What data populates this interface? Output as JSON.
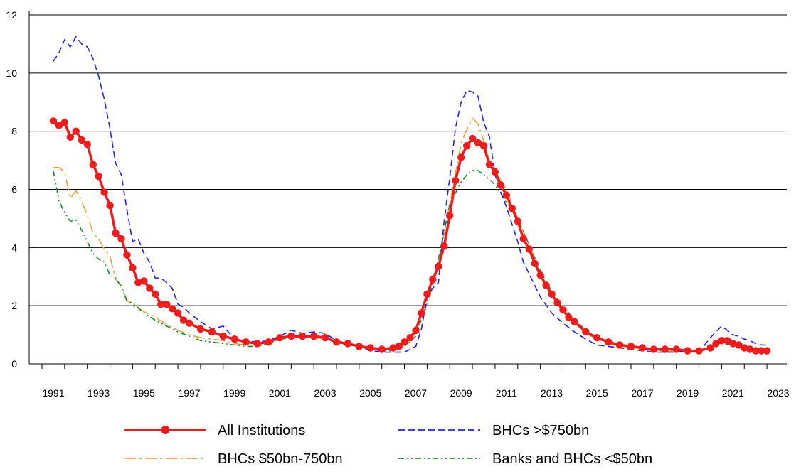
{
  "chart_data": {
    "type": "line",
    "title": "",
    "xlabel": "",
    "ylabel": "",
    "xlim": [
      1990.5,
      2023
    ],
    "ylim": [
      0,
      12
    ],
    "grid": "horizontal",
    "legend_placement": "bottom",
    "y_ticks": [
      "0",
      "2",
      "4",
      "6",
      "8",
      "10",
      "12"
    ],
    "x_ticks": [
      "1991",
      "1993",
      "1995",
      "1997",
      "1999",
      "2001",
      "2003",
      "2005",
      "2007",
      "2009",
      "2011",
      "2013",
      "2015",
      "2017",
      "2019",
      "2021",
      "2023"
    ],
    "series": [
      {
        "name": "All Institutions",
        "color": "#ee1c1c",
        "style": "solid-markers",
        "x": [
          1991.0,
          1991.25,
          1991.5,
          1991.75,
          1992.0,
          1992.25,
          1992.5,
          1992.75,
          1993.0,
          1993.25,
          1993.5,
          1993.75,
          1994.0,
          1994.25,
          1994.5,
          1994.75,
          1995.0,
          1995.25,
          1995.5,
          1995.75,
          1996.0,
          1996.25,
          1996.5,
          1996.75,
          1997.0,
          1997.5,
          1998.0,
          1998.5,
          1999.0,
          1999.5,
          2000.0,
          2000.5,
          2001.0,
          2001.5,
          2002.0,
          2002.5,
          2003.0,
          2003.5,
          2004.0,
          2004.5,
          2005.0,
          2005.5,
          2006.0,
          2006.25,
          2006.5,
          2006.75,
          2007.0,
          2007.25,
          2007.5,
          2007.75,
          2008.0,
          2008.25,
          2008.5,
          2008.75,
          2009.0,
          2009.25,
          2009.5,
          2009.75,
          2010.0,
          2010.25,
          2010.5,
          2010.75,
          2011.0,
          2011.25,
          2011.5,
          2011.75,
          2012.0,
          2012.25,
          2012.5,
          2012.75,
          2013.0,
          2013.25,
          2013.5,
          2013.75,
          2014.0,
          2014.5,
          2015.0,
          2015.5,
          2016.0,
          2016.5,
          2017.0,
          2017.5,
          2018.0,
          2018.5,
          2019.0,
          2019.5,
          2020.0,
          2020.25,
          2020.5,
          2020.75,
          2021.0,
          2021.25,
          2021.5,
          2021.75,
          2022.0,
          2022.25,
          2022.5
        ],
        "values": [
          8.35,
          8.2,
          8.3,
          7.8,
          8.0,
          7.7,
          7.55,
          6.85,
          6.45,
          5.9,
          5.45,
          4.5,
          4.3,
          3.75,
          3.3,
          2.8,
          2.85,
          2.6,
          2.4,
          2.05,
          2.05,
          1.9,
          1.75,
          1.5,
          1.4,
          1.2,
          1.1,
          0.95,
          0.85,
          0.75,
          0.7,
          0.75,
          0.9,
          0.95,
          0.95,
          0.95,
          0.9,
          0.75,
          0.7,
          0.6,
          0.55,
          0.5,
          0.55,
          0.6,
          0.75,
          0.9,
          1.15,
          1.75,
          2.4,
          2.9,
          3.35,
          4.05,
          5.1,
          6.3,
          7.1,
          7.5,
          7.75,
          7.6,
          7.5,
          6.85,
          6.6,
          6.15,
          5.8,
          5.35,
          4.9,
          4.3,
          3.95,
          3.45,
          3.05,
          2.7,
          2.4,
          2.1,
          1.85,
          1.6,
          1.45,
          1.1,
          0.9,
          0.75,
          0.65,
          0.6,
          0.55,
          0.5,
          0.5,
          0.5,
          0.45,
          0.45,
          0.55,
          0.7,
          0.8,
          0.8,
          0.7,
          0.65,
          0.55,
          0.5,
          0.45,
          0.45,
          0.45
        ]
      },
      {
        "name": "BHCs >$750bn",
        "color": "#2424e6",
        "style": "dashed",
        "x": [
          1991.0,
          1991.25,
          1991.5,
          1991.75,
          1992.0,
          1992.25,
          1992.5,
          1992.75,
          1993.0,
          1993.25,
          1993.5,
          1993.75,
          1994.0,
          1994.25,
          1994.5,
          1994.75,
          1995.0,
          1995.25,
          1995.5,
          1995.75,
          1996.0,
          1996.25,
          1996.5,
          1996.75,
          1997.0,
          1997.5,
          1998.0,
          1998.5,
          1999.0,
          1999.5,
          2000.0,
          2000.5,
          2001.0,
          2001.5,
          2002.0,
          2002.5,
          2003.0,
          2003.5,
          2004.0,
          2004.5,
          2005.0,
          2005.5,
          2006.0,
          2006.5,
          2007.0,
          2007.25,
          2007.5,
          2007.75,
          2008.0,
          2008.25,
          2008.5,
          2008.75,
          2009.0,
          2009.25,
          2009.5,
          2009.75,
          2010.0,
          2010.25,
          2010.5,
          2010.75,
          2011.0,
          2011.25,
          2011.5,
          2011.75,
          2012.0,
          2012.5,
          2013.0,
          2013.5,
          2014.0,
          2014.5,
          2015.0,
          2015.5,
          2016.0,
          2016.5,
          2017.0,
          2017.5,
          2018.0,
          2018.5,
          2019.0,
          2019.5,
          2020.0,
          2020.25,
          2020.5,
          2020.75,
          2021.0,
          2021.25,
          2021.5,
          2021.75,
          2022.0,
          2022.25,
          2022.5
        ],
        "values": [
          10.4,
          10.7,
          11.15,
          10.9,
          11.25,
          11.0,
          10.9,
          10.5,
          9.9,
          9.1,
          8.1,
          6.9,
          6.5,
          5.3,
          4.2,
          4.3,
          3.8,
          3.5,
          2.95,
          2.95,
          2.8,
          2.6,
          2.05,
          1.95,
          1.75,
          1.45,
          1.2,
          1.3,
          0.85,
          0.8,
          0.75,
          0.8,
          0.95,
          1.15,
          1.05,
          1.1,
          1.05,
          0.8,
          0.7,
          0.6,
          0.45,
          0.4,
          0.4,
          0.4,
          0.6,
          1.2,
          2.3,
          2.6,
          2.8,
          4.9,
          6.4,
          8.1,
          9.0,
          9.4,
          9.35,
          9.2,
          8.3,
          7.8,
          6.5,
          5.9,
          5.4,
          4.8,
          4.2,
          3.5,
          3.1,
          2.3,
          1.75,
          1.4,
          1.1,
          0.85,
          0.65,
          0.6,
          0.55,
          0.5,
          0.45,
          0.4,
          0.4,
          0.4,
          0.45,
          0.4,
          0.9,
          1.1,
          1.3,
          1.15,
          1.0,
          0.95,
          0.85,
          0.8,
          0.7,
          0.65,
          0.65
        ]
      },
      {
        "name": "BHCs $50bn-750bn",
        "color": "#f0a040",
        "style": "dash-dot",
        "x": [
          1991.0,
          1991.25,
          1991.5,
          1991.75,
          1992.0,
          1992.25,
          1992.5,
          1992.75,
          1993.0,
          1993.25,
          1993.5,
          1993.75,
          1994.0,
          1994.25,
          1994.5,
          1995.0,
          1995.5,
          1996.0,
          1996.5,
          1997.0,
          1997.5,
          1998.0,
          1998.5,
          1999.0,
          1999.5,
          2000.0,
          2000.5,
          2001.0,
          2001.5,
          2002.0,
          2002.5,
          2003.0,
          2003.5,
          2004.0,
          2004.5,
          2005.0,
          2005.5,
          2006.0,
          2006.5,
          2007.0,
          2007.5,
          2008.0,
          2008.5,
          2009.0,
          2009.25,
          2009.5,
          2009.75,
          2010.0,
          2010.25,
          2010.5,
          2010.75,
          2011.0,
          2011.5,
          2012.0,
          2012.5,
          2013.0,
          2013.5,
          2014.0,
          2014.5,
          2015.0,
          2015.5,
          2016.0,
          2016.5,
          2017.0,
          2017.5,
          2018.0,
          2018.5,
          2019.0,
          2019.5,
          2020.0,
          2020.5,
          2021.0,
          2021.5,
          2022.0,
          2022.5
        ],
        "values": [
          6.75,
          6.75,
          6.6,
          5.7,
          5.95,
          5.6,
          5.1,
          4.5,
          4.3,
          3.95,
          3.7,
          2.9,
          2.7,
          2.2,
          2.0,
          1.8,
          1.6,
          1.35,
          1.15,
          1.0,
          0.9,
          0.85,
          0.8,
          0.7,
          0.65,
          0.65,
          0.75,
          0.85,
          0.9,
          0.9,
          0.9,
          0.85,
          0.75,
          0.7,
          0.6,
          0.5,
          0.5,
          0.5,
          0.65,
          1.05,
          2.0,
          3.4,
          5.5,
          7.6,
          8.05,
          8.45,
          8.25,
          7.65,
          7.0,
          6.7,
          6.3,
          6.0,
          5.0,
          4.1,
          3.1,
          2.35,
          1.8,
          1.45,
          1.05,
          0.85,
          0.7,
          0.6,
          0.55,
          0.5,
          0.45,
          0.45,
          0.4,
          0.4,
          0.4,
          0.55,
          0.75,
          0.7,
          0.55,
          0.45,
          0.4
        ]
      },
      {
        "name": "Banks and BHCs <$50bn",
        "color": "#1e8a2e",
        "style": "dash-dot-dot",
        "x": [
          1991.0,
          1991.25,
          1991.5,
          1991.75,
          1992.0,
          1992.25,
          1992.5,
          1992.75,
          1993.0,
          1993.25,
          1993.5,
          1993.75,
          1994.0,
          1994.25,
          1994.5,
          1995.0,
          1995.5,
          1996.0,
          1996.5,
          1997.0,
          1997.5,
          1998.0,
          1998.5,
          1999.0,
          1999.5,
          2000.0,
          2000.5,
          2001.0,
          2001.5,
          2002.0,
          2002.5,
          2003.0,
          2003.5,
          2004.0,
          2004.5,
          2005.0,
          2005.5,
          2006.0,
          2006.5,
          2007.0,
          2007.5,
          2008.0,
          2008.5,
          2009.0,
          2009.25,
          2009.5,
          2009.75,
          2010.0,
          2010.25,
          2010.5,
          2010.75,
          2011.0,
          2011.5,
          2012.0,
          2012.5,
          2013.0,
          2013.5,
          2014.0,
          2014.5,
          2015.0,
          2015.5,
          2016.0,
          2016.5,
          2017.0,
          2017.5,
          2018.0,
          2018.5,
          2019.0,
          2019.5,
          2020.0,
          2020.5,
          2021.0,
          2021.5,
          2022.0,
          2022.5
        ],
        "values": [
          6.65,
          5.6,
          5.2,
          4.9,
          4.95,
          4.6,
          4.2,
          3.8,
          3.6,
          3.5,
          3.05,
          2.95,
          2.65,
          2.15,
          2.1,
          1.75,
          1.5,
          1.3,
          1.1,
          0.95,
          0.8,
          0.75,
          0.7,
          0.65,
          0.6,
          0.6,
          0.7,
          0.85,
          0.9,
          0.9,
          0.95,
          0.85,
          0.75,
          0.65,
          0.6,
          0.5,
          0.45,
          0.45,
          0.6,
          0.95,
          2.1,
          3.6,
          5.5,
          6.25,
          6.5,
          6.65,
          6.65,
          6.5,
          6.35,
          6.15,
          5.85,
          5.55,
          5.0,
          4.1,
          3.2,
          2.5,
          1.95,
          1.55,
          1.15,
          0.9,
          0.75,
          0.65,
          0.6,
          0.5,
          0.5,
          0.45,
          0.45,
          0.45,
          0.45,
          0.6,
          0.7,
          0.65,
          0.55,
          0.5,
          0.45
        ]
      }
    ]
  }
}
